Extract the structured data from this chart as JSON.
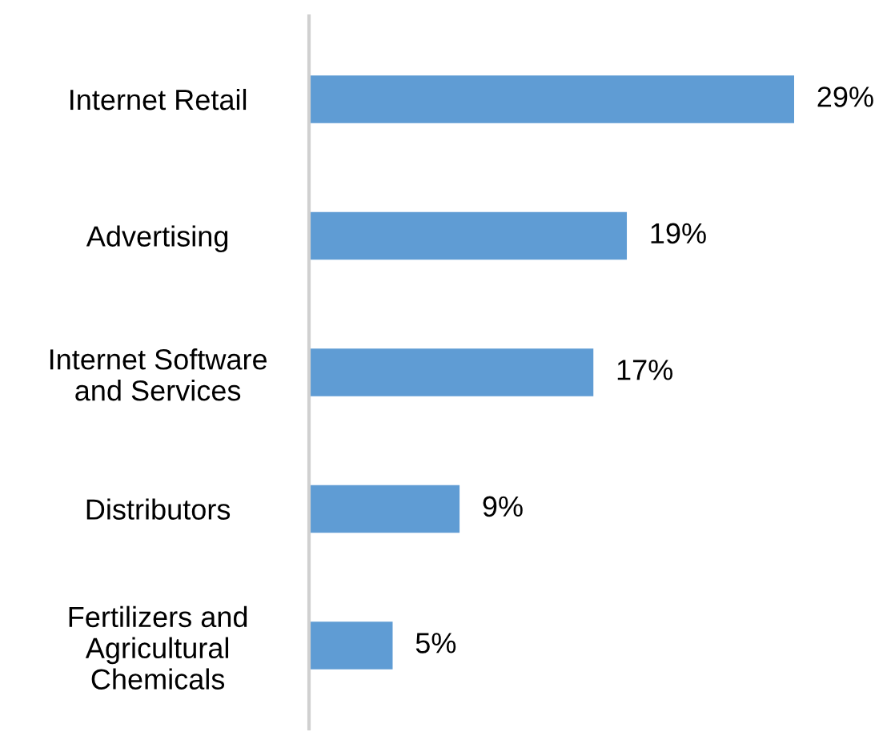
{
  "chart_data": {
    "type": "bar",
    "orientation": "horizontal",
    "categories": [
      "Internet Retail",
      "Advertising",
      "Internet Software\nand Services",
      "Distributors",
      "Fertilizers and\nAgricultural\nChemicals"
    ],
    "values": [
      29,
      19,
      17,
      9,
      5
    ],
    "color": "#5f9cd4",
    "value_labels": [
      "29%",
      "19%",
      "17%",
      "9%",
      "5%"
    ],
    "grid": false,
    "legend": false
  }
}
